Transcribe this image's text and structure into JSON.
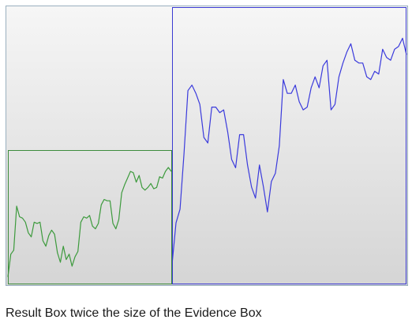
{
  "caption": "Result Box twice the size of the Evidence Box",
  "colors": {
    "evidence_line": "#3c9a3c",
    "evidence_box": "#3c8c3c",
    "result_line": "#3a3adc",
    "result_box": "#3a3ad2",
    "panel_border": "#9ab0bf",
    "panel_top": "#f6f6f6",
    "panel_bottom": "#d5d5d5"
  },
  "chart_data": {
    "type": "line",
    "title": "",
    "xlabel": "",
    "ylabel": "",
    "grid": false,
    "axes_shown": false,
    "ylim": [
      0,
      100
    ],
    "series": [
      {
        "role": "evidence",
        "color": "#3c9a3c",
        "values": [
          5,
          22,
          25,
          58,
          50,
          49,
          46,
          38,
          35,
          46,
          45,
          46,
          32,
          28,
          36,
          40,
          37,
          23,
          16,
          28,
          18,
          22,
          13,
          20,
          24,
          46,
          50,
          49,
          51,
          43,
          41,
          45,
          59,
          63,
          62,
          62,
          45,
          41,
          48,
          68,
          74,
          79,
          84,
          83,
          76,
          81,
          72,
          70,
          72,
          75,
          71,
          72,
          80,
          79,
          84,
          87,
          84
        ]
      },
      {
        "role": "result",
        "color": "#3a3adc",
        "values": [
          7,
          22,
          27,
          47,
          70,
          72,
          69,
          65,
          53,
          51,
          64,
          64,
          62,
          63,
          55,
          45,
          42,
          54,
          54,
          43,
          35,
          31,
          43,
          35,
          26,
          37,
          40,
          50,
          74,
          69,
          69,
          72,
          66,
          63,
          64,
          71,
          75,
          71,
          79,
          81,
          63,
          65,
          75,
          80,
          84,
          87,
          81,
          80,
          80,
          75,
          74,
          77,
          76,
          85,
          82,
          81,
          85,
          86,
          89,
          83
        ]
      }
    ]
  }
}
